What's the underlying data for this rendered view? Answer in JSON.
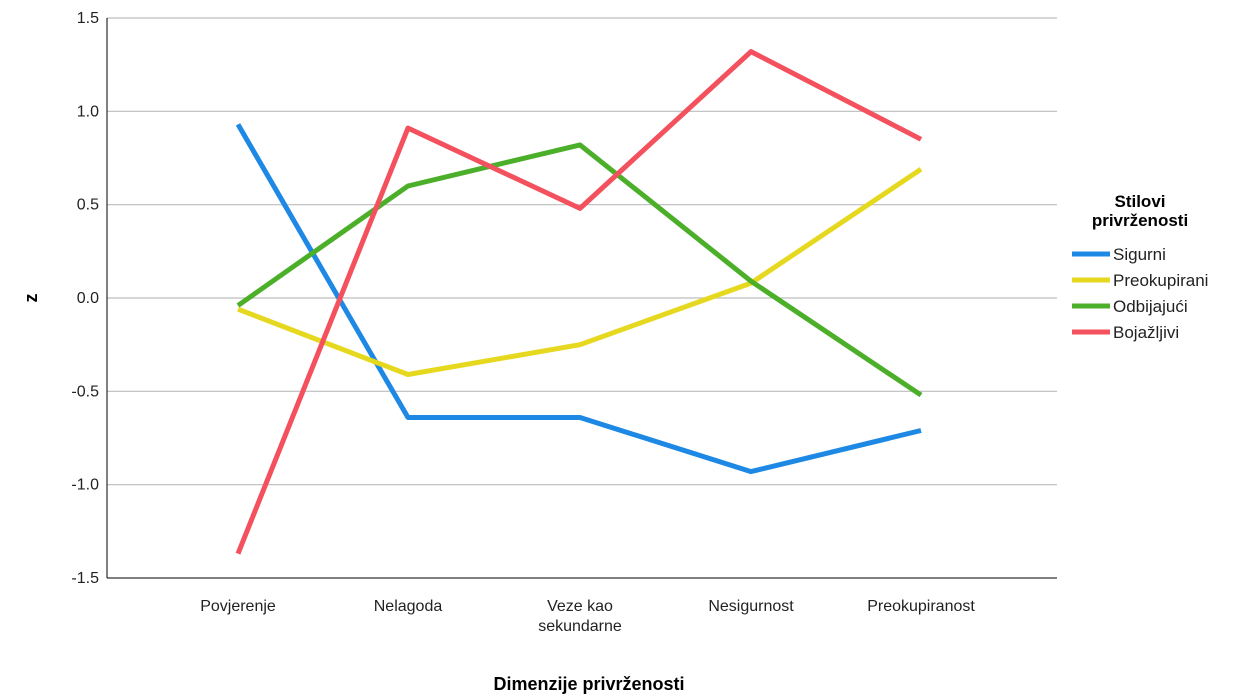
{
  "chart_data": {
    "type": "line",
    "categories": [
      "Povjerenje",
      "Nelagoda",
      "Veze kao sekundarne",
      "Nesigurnost",
      "Preokupiranost"
    ],
    "category_lines": [
      [
        "Povjerenje"
      ],
      [
        "Nelagoda"
      ],
      [
        "Veze kao",
        "sekundarne"
      ],
      [
        "Nesigurnost"
      ],
      [
        "Preokupiranost"
      ]
    ],
    "series": [
      {
        "name": "Sigurni",
        "color": "#1e88e5",
        "values": [
          0.93,
          -0.64,
          -0.64,
          -0.93,
          -0.71
        ]
      },
      {
        "name": "Preokupirani",
        "color": "#e6d81e",
        "values": [
          -0.06,
          -0.41,
          -0.25,
          0.08,
          0.69
        ]
      },
      {
        "name": "Odbijajući",
        "color": "#4caf2a",
        "values": [
          -0.04,
          0.6,
          0.82,
          0.09,
          -0.52
        ]
      },
      {
        "name": "Bojažljivi",
        "color": "#f4515e",
        "values": [
          -1.37,
          0.91,
          0.48,
          1.32,
          0.85
        ]
      }
    ],
    "xlabel": "Dimenzije privrženosti",
    "ylabel": "z",
    "ylim": [
      -1.5,
      1.5
    ],
    "yticks": [
      -1.5,
      -1.0,
      -0.5,
      0.0,
      0.5,
      1.0,
      1.5
    ],
    "ytick_labels": [
      "-1.5",
      "-1.0",
      "-0.5",
      "0.0",
      "0.5",
      "1.0",
      "1.5"
    ],
    "grid": true,
    "legend": {
      "title_lines": [
        "Stilovi",
        "privrženosti"
      ],
      "placement": "right"
    }
  }
}
